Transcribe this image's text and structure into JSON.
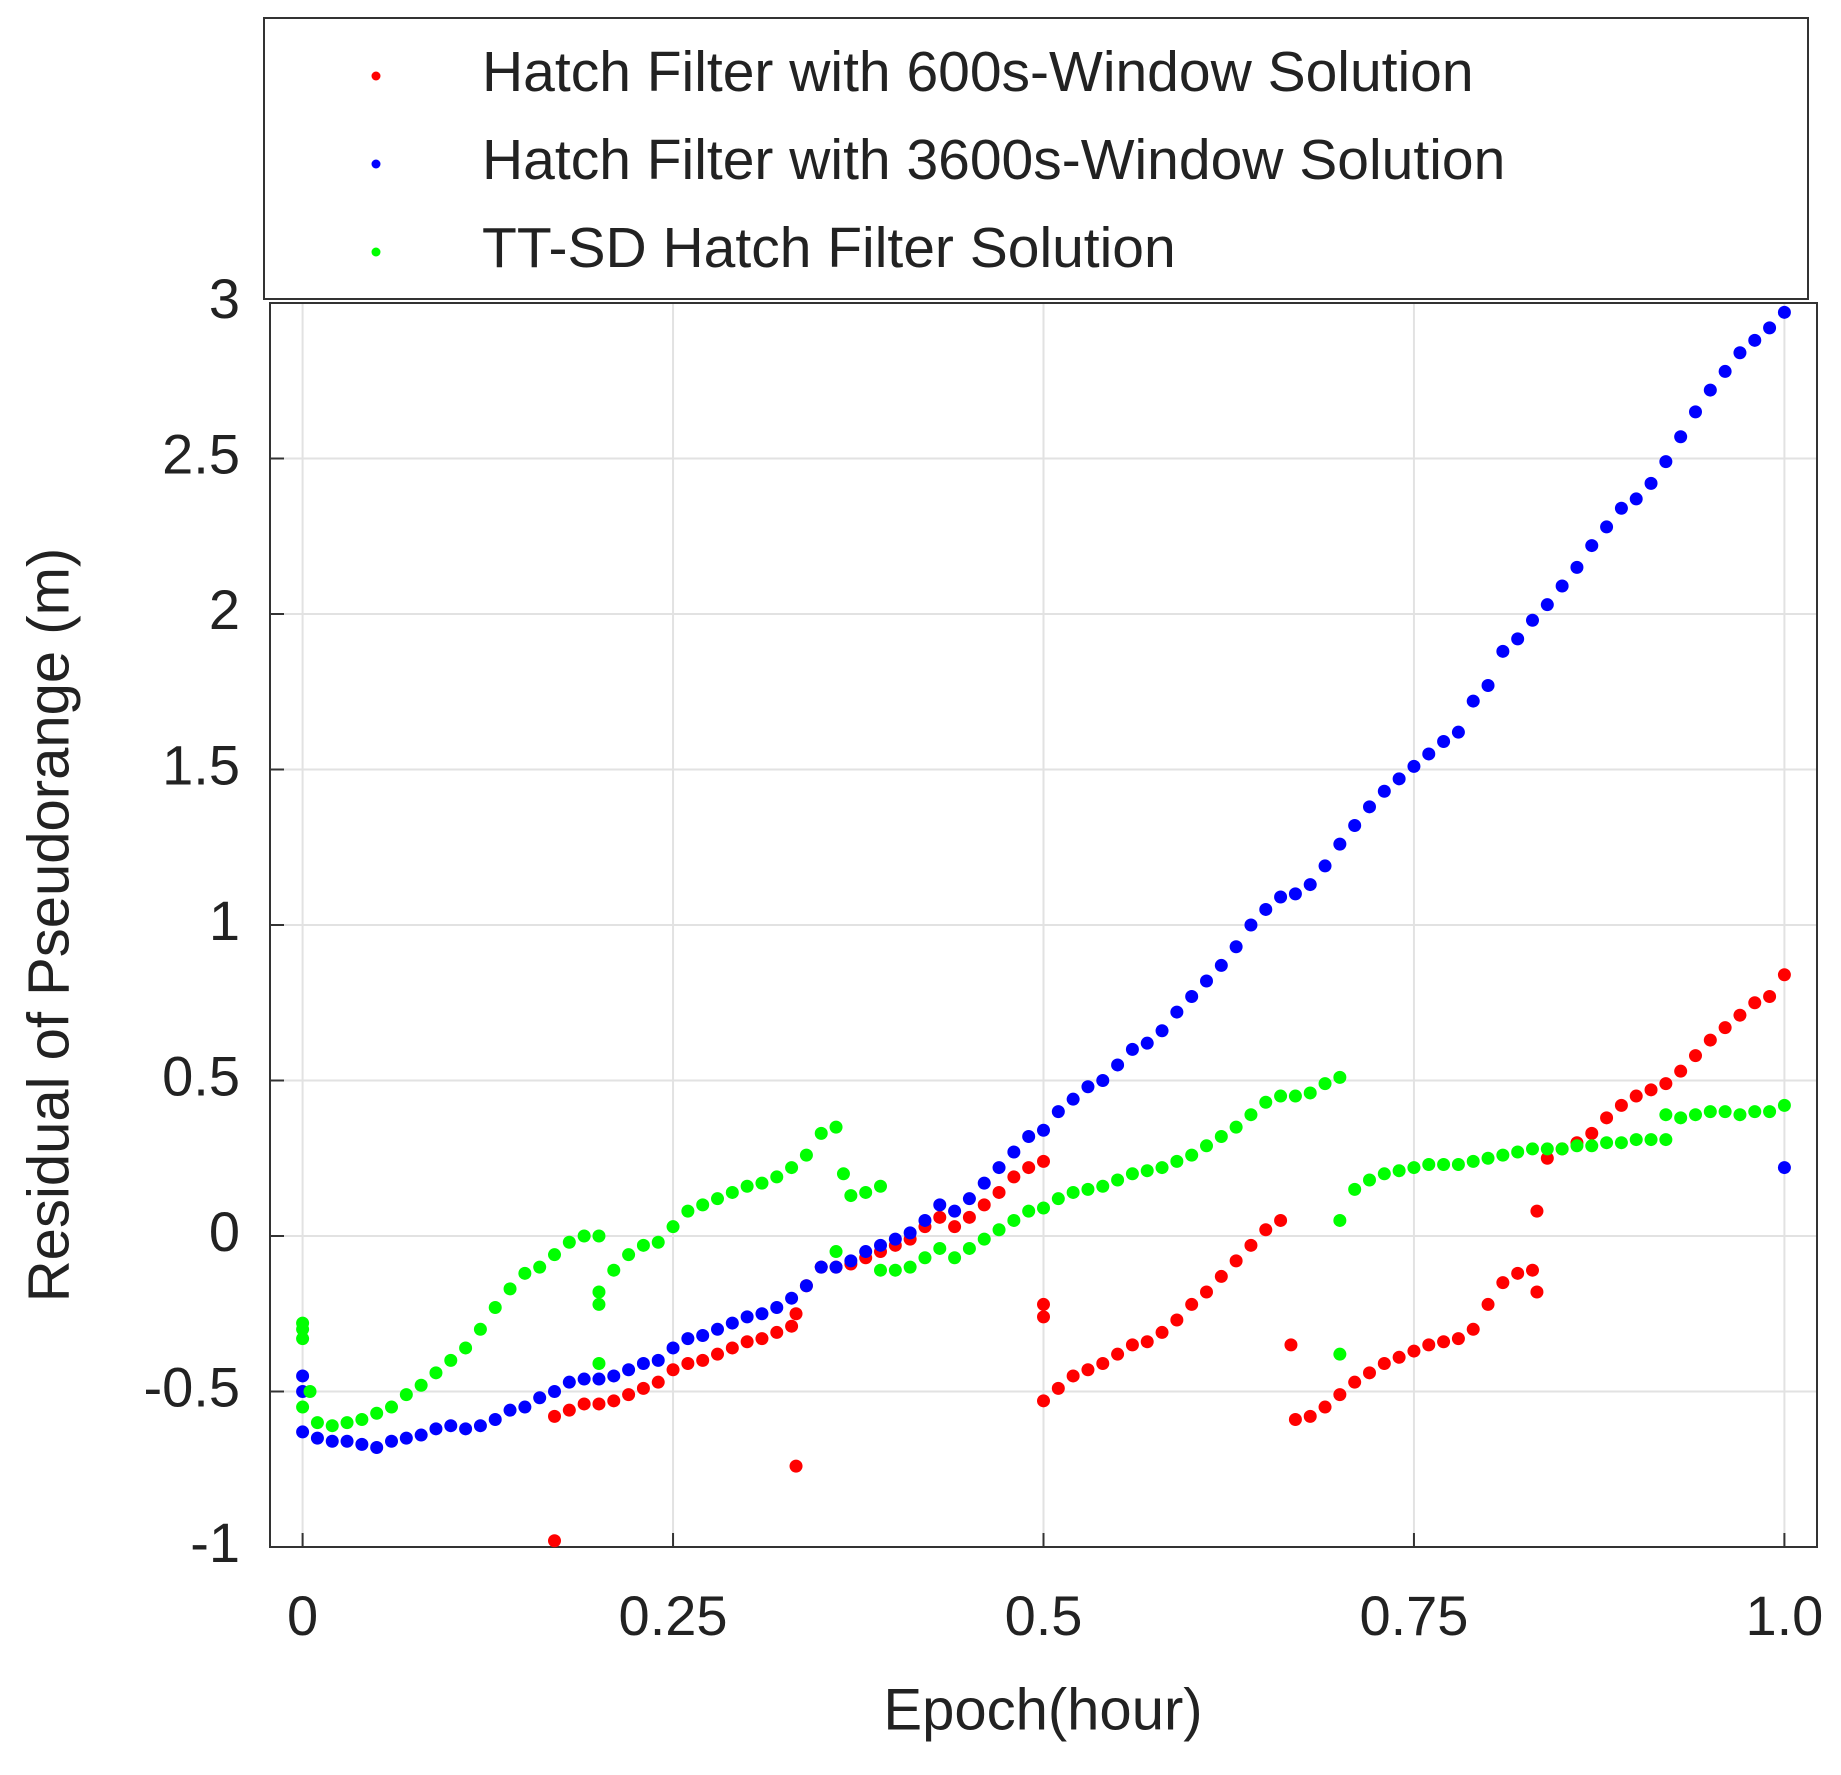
{
  "chart_data": {
    "type": "scatter",
    "xlabel": "Epoch(hour)",
    "ylabel": "Residual of Pseudorange (m)",
    "xlim": [
      -0.022,
      1.022
    ],
    "ylim": [
      -1,
      3
    ],
    "xticks": [
      0,
      0.25,
      0.5,
      0.75,
      {
        "value": 1,
        "label": "1.0"
      }
    ],
    "yticks": [
      -1,
      -0.5,
      0,
      0.5,
      1,
      1.5,
      2,
      2.5,
      3
    ],
    "grid": true,
    "legend": "north",
    "series": [
      {
        "name": "Hatch Filter with 600s-Window Solution",
        "color": "#ff0000",
        "x": [
          0.17,
          0.18,
          0.19,
          0.2,
          0.21,
          0.22,
          0.23,
          0.24,
          0.25,
          0.26,
          0.27,
          0.28,
          0.29,
          0.3,
          0.31,
          0.32,
          0.33,
          0.34,
          0.35,
          0.36,
          0.37,
          0.38,
          0.39,
          0.4,
          0.41,
          0.42,
          0.43,
          0.44,
          0.45,
          0.46,
          0.47,
          0.48,
          0.49,
          0.5,
          0.5,
          0.51,
          0.52,
          0.53,
          0.54,
          0.55,
          0.56,
          0.57,
          0.58,
          0.59,
          0.6,
          0.61,
          0.62,
          0.63,
          0.64,
          0.65,
          0.66,
          0.67,
          0.68,
          0.69,
          0.7,
          0.71,
          0.72,
          0.73,
          0.74,
          0.75,
          0.76,
          0.77,
          0.78,
          0.79,
          0.8,
          0.81,
          0.82,
          0.83,
          0.84,
          0.85,
          0.86,
          0.87,
          0.88,
          0.89,
          0.9,
          0.91,
          0.92,
          0.93,
          0.94,
          0.95,
          0.96,
          0.97,
          0.98,
          0.99,
          1.0,
          0.17,
          0.333,
          0.333,
          0.5,
          0.5,
          0.667,
          0.833,
          0.833
        ],
        "values": [
          -0.58,
          -0.56,
          -0.54,
          -0.54,
          -0.53,
          -0.51,
          -0.49,
          -0.47,
          -0.43,
          -0.41,
          -0.4,
          -0.38,
          -0.36,
          -0.34,
          -0.33,
          -0.31,
          -0.29,
          -0.16,
          -0.1,
          -0.1,
          -0.09,
          -0.07,
          -0.05,
          -0.03,
          -0.01,
          0.03,
          0.06,
          0.03,
          0.06,
          0.1,
          0.14,
          0.19,
          0.22,
          0.24,
          -0.53,
          -0.49,
          -0.45,
          -0.43,
          -0.41,
          -0.38,
          -0.35,
          -0.34,
          -0.31,
          -0.27,
          -0.22,
          -0.18,
          -0.13,
          -0.08,
          -0.03,
          0.02,
          0.05,
          -0.59,
          -0.58,
          -0.55,
          -0.51,
          -0.47,
          -0.44,
          -0.41,
          -0.39,
          -0.37,
          -0.35,
          -0.34,
          -0.33,
          -0.3,
          -0.22,
          -0.15,
          -0.12,
          -0.11,
          0.25,
          0.28,
          0.3,
          0.33,
          0.38,
          0.42,
          0.45,
          0.47,
          0.49,
          0.53,
          0.58,
          0.63,
          0.67,
          0.71,
          0.75,
          0.77,
          0.84,
          -0.98,
          -0.74,
          -0.25,
          -0.22,
          -0.26,
          -0.35,
          0.08,
          -0.18
        ]
      },
      {
        "name": "Hatch Filter with 3600s-Window Solution",
        "color": "#0000ff",
        "x": [
          0,
          0.01,
          0.02,
          0.03,
          0.04,
          0.05,
          0.06,
          0.07,
          0.08,
          0.09,
          0.1,
          0.11,
          0.12,
          0.13,
          0.14,
          0.15,
          0.16,
          0.17,
          0.18,
          0.19,
          0.2,
          0.21,
          0.22,
          0.23,
          0.24,
          0.25,
          0.26,
          0.27,
          0.28,
          0.29,
          0.3,
          0.31,
          0.32,
          0.33,
          0.34,
          0.35,
          0.36,
          0.37,
          0.38,
          0.39,
          0.4,
          0.41,
          0.42,
          0.43,
          0.44,
          0.45,
          0.46,
          0.47,
          0.48,
          0.49,
          0.5,
          0.51,
          0.52,
          0.53,
          0.54,
          0.55,
          0.56,
          0.57,
          0.58,
          0.59,
          0.6,
          0.61,
          0.62,
          0.63,
          0.64,
          0.65,
          0.66,
          0.67,
          0.68,
          0.69,
          0.7,
          0.71,
          0.72,
          0.73,
          0.74,
          0.75,
          0.76,
          0.77,
          0.78,
          0.79,
          0.8,
          0.81,
          0.82,
          0.83,
          0.84,
          0.85,
          0.86,
          0.87,
          0.88,
          0.89,
          0.9,
          0.91,
          0.92,
          0.93,
          0.94,
          0.95,
          0.96,
          0.97,
          0.98,
          0.99,
          1.0,
          0,
          0,
          1.0
        ],
        "values": [
          -0.63,
          -0.65,
          -0.66,
          -0.66,
          -0.67,
          -0.68,
          -0.66,
          -0.65,
          -0.64,
          -0.62,
          -0.61,
          -0.62,
          -0.61,
          -0.59,
          -0.56,
          -0.55,
          -0.52,
          -0.5,
          -0.47,
          -0.46,
          -0.46,
          -0.45,
          -0.43,
          -0.41,
          -0.4,
          -0.36,
          -0.33,
          -0.32,
          -0.3,
          -0.28,
          -0.26,
          -0.25,
          -0.23,
          -0.2,
          -0.16,
          -0.1,
          -0.1,
          -0.08,
          -0.05,
          -0.03,
          -0.01,
          0.01,
          0.05,
          0.1,
          0.08,
          0.12,
          0.17,
          0.22,
          0.27,
          0.32,
          0.34,
          0.4,
          0.44,
          0.48,
          0.5,
          0.55,
          0.6,
          0.62,
          0.66,
          0.72,
          0.77,
          0.82,
          0.87,
          0.93,
          1.0,
          1.05,
          1.09,
          1.1,
          1.13,
          1.19,
          1.26,
          1.32,
          1.38,
          1.43,
          1.47,
          1.51,
          1.55,
          1.59,
          1.62,
          1.72,
          1.77,
          1.88,
          1.92,
          1.98,
          2.03,
          2.09,
          2.15,
          2.22,
          2.28,
          2.34,
          2.37,
          2.42,
          2.49,
          2.57,
          2.65,
          2.72,
          2.78,
          2.84,
          2.88,
          2.92,
          2.97,
          -0.45,
          -0.5,
          0.22
        ]
      },
      {
        "name": "TT-SD Hatch Filter Solution",
        "color": "#00ff00",
        "x": [
          0,
          0,
          0,
          0.005,
          0,
          0.01,
          0.02,
          0.03,
          0.04,
          0.05,
          0.06,
          0.07,
          0.08,
          0.09,
          0.1,
          0.11,
          0.12,
          0.13,
          0.14,
          0.15,
          0.16,
          0.17,
          0.18,
          0.19,
          0.2,
          0.2,
          0.2,
          0.2,
          0.21,
          0.22,
          0.23,
          0.24,
          0.25,
          0.26,
          0.27,
          0.28,
          0.29,
          0.3,
          0.31,
          0.32,
          0.33,
          0.34,
          0.35,
          0.36,
          0.365,
          0.37,
          0.38,
          0.39,
          0.36,
          0.39,
          0.4,
          0.41,
          0.42,
          0.43,
          0.44,
          0.45,
          0.46,
          0.47,
          0.48,
          0.49,
          0.5,
          0.51,
          0.52,
          0.53,
          0.54,
          0.55,
          0.56,
          0.57,
          0.58,
          0.59,
          0.6,
          0.61,
          0.62,
          0.63,
          0.64,
          0.65,
          0.66,
          0.67,
          0.68,
          0.69,
          0.7,
          0.7,
          0.7,
          0.71,
          0.72,
          0.73,
          0.74,
          0.75,
          0.76,
          0.77,
          0.78,
          0.79,
          0.8,
          0.81,
          0.82,
          0.83,
          0.84,
          0.85,
          0.86,
          0.87,
          0.88,
          0.89,
          0.9,
          0.91,
          0.92,
          0.92,
          0.93,
          0.94,
          0.95,
          0.96,
          0.97,
          0.98,
          0.99,
          1.0
        ],
        "values": [
          -0.28,
          -0.3,
          -0.33,
          -0.5,
          -0.55,
          -0.6,
          -0.61,
          -0.6,
          -0.59,
          -0.57,
          -0.55,
          -0.51,
          -0.48,
          -0.44,
          -0.4,
          -0.36,
          -0.3,
          -0.23,
          -0.17,
          -0.12,
          -0.1,
          -0.06,
          -0.02,
          0,
          0,
          -0.18,
          -0.22,
          -0.41,
          -0.11,
          -0.06,
          -0.03,
          -0.02,
          0.03,
          0.08,
          0.1,
          0.12,
          0.14,
          0.16,
          0.17,
          0.19,
          0.22,
          0.26,
          0.33,
          0.35,
          0.2,
          0.13,
          0.14,
          0.16,
          -0.05,
          -0.11,
          -0.11,
          -0.1,
          -0.07,
          -0.04,
          -0.07,
          -0.04,
          -0.01,
          0.02,
          0.05,
          0.08,
          0.09,
          0.12,
          0.14,
          0.15,
          0.16,
          0.18,
          0.2,
          0.21,
          0.22,
          0.24,
          0.26,
          0.29,
          0.32,
          0.35,
          0.39,
          0.43,
          0.45,
          0.45,
          0.46,
          0.49,
          0.51,
          0.05,
          -0.38,
          0.15,
          0.18,
          0.2,
          0.21,
          0.22,
          0.23,
          0.23,
          0.23,
          0.24,
          0.25,
          0.26,
          0.27,
          0.28,
          0.28,
          0.28,
          0.29,
          0.29,
          0.3,
          0.3,
          0.31,
          0.31,
          0.31,
          0.39,
          0.38,
          0.39,
          0.4,
          0.4,
          0.39,
          0.4,
          0.4,
          0.42
        ]
      }
    ]
  }
}
